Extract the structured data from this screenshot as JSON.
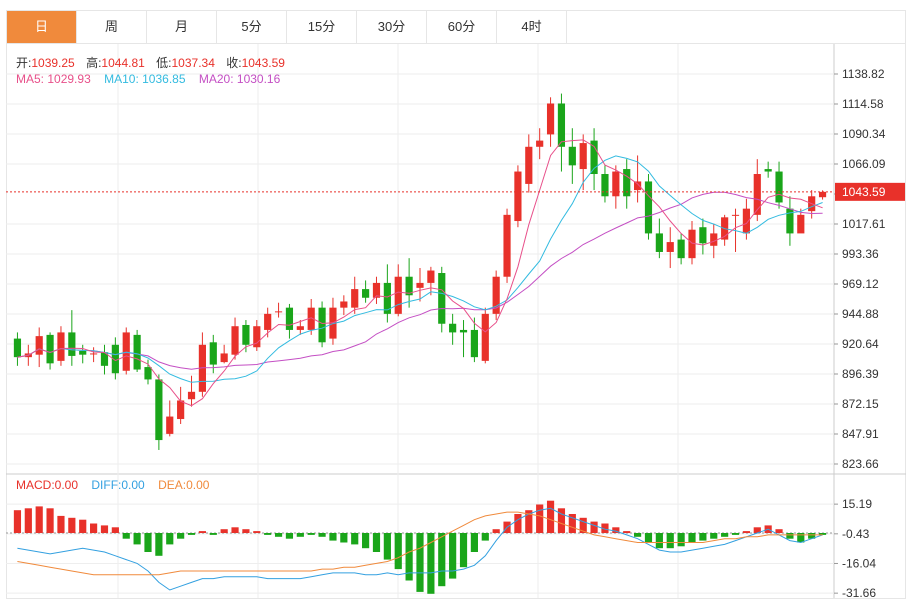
{
  "tabs": [
    "日",
    "周",
    "月",
    "5分",
    "15分",
    "30分",
    "60分",
    "4时"
  ],
  "active_tab": 0,
  "ohlc": {
    "open_label": "开:",
    "open": "1039.25",
    "high_label": "高:",
    "high": "1044.81",
    "low_label": "低:",
    "low": "1037.34",
    "close_label": "收:",
    "close": "1043.59"
  },
  "ma": {
    "ma5_label": "MA5:",
    "ma5": "1029.93",
    "ma10_label": "MA10:",
    "ma10": "1036.85",
    "ma20_label": "MA20:",
    "ma20": "1030.16"
  },
  "macd_info": {
    "macd_label": "MACD:",
    "macd": "0.00",
    "diff_label": "DIFF:",
    "diff": "0.00",
    "dea_label": "DEA:",
    "dea": "0.00"
  },
  "colors": {
    "up": "#e8312a",
    "down": "#1aa51a",
    "ma5": "#e8508a",
    "ma10": "#33bbe0",
    "ma20": "#c44fc4",
    "diff": "#33a0e0",
    "dea": "#f08a3c",
    "grid": "#eeeeee",
    "axis_text": "#333333",
    "current_label_bg": "#e8312a"
  },
  "chart_data": {
    "type": "candlestick",
    "price_axis": {
      "min": 823.66,
      "max": 1138.82,
      "ticks": [
        "1138.82",
        "1114.58",
        "1090.34",
        "1066.09",
        "1041.85",
        "1017.61",
        "993.36",
        "969.12",
        "944.88",
        "920.64",
        "896.39",
        "872.15",
        "847.91",
        "823.66"
      ]
    },
    "current_price": "1043.59",
    "candles": [
      [
        925,
        910,
        930,
        903
      ],
      [
        910,
        913,
        920,
        903
      ],
      [
        912,
        927,
        934,
        902
      ],
      [
        928,
        905,
        930,
        900
      ],
      [
        907,
        930,
        935,
        903
      ],
      [
        930,
        911,
        948,
        903
      ],
      [
        915,
        912,
        920,
        905
      ],
      [
        913,
        913,
        918,
        906
      ],
      [
        914,
        903,
        920,
        896
      ],
      [
        920,
        897,
        926,
        892
      ],
      [
        899,
        930,
        934,
        896
      ],
      [
        928,
        900,
        932,
        898
      ],
      [
        902,
        892,
        908,
        888
      ],
      [
        892,
        843,
        896,
        835
      ],
      [
        848,
        862,
        875,
        846
      ],
      [
        860,
        875,
        886,
        856
      ],
      [
        876,
        882,
        895,
        870
      ],
      [
        882,
        920,
        930,
        878
      ],
      [
        922,
        904,
        928,
        897
      ],
      [
        906,
        913,
        920,
        905
      ],
      [
        912,
        935,
        942,
        908
      ],
      [
        936,
        920,
        940,
        914
      ],
      [
        918,
        935,
        940,
        915
      ],
      [
        932,
        945,
        950,
        926
      ],
      [
        947,
        947,
        954,
        942
      ],
      [
        950,
        932,
        953,
        925
      ],
      [
        932,
        935,
        940,
        928
      ],
      [
        932,
        950,
        957,
        928
      ],
      [
        950,
        922,
        955,
        918
      ],
      [
        925,
        950,
        958,
        920
      ],
      [
        950,
        955,
        960,
        944
      ],
      [
        950,
        965,
        975,
        945
      ],
      [
        965,
        958,
        972,
        954
      ],
      [
        958,
        970,
        975,
        953
      ],
      [
        970,
        945,
        985,
        938
      ],
      [
        945,
        975,
        985,
        943
      ],
      [
        975,
        960,
        990,
        950
      ],
      [
        966,
        970,
        982,
        955
      ],
      [
        970,
        980,
        983,
        960
      ],
      [
        978,
        937,
        983,
        930
      ],
      [
        937,
        930,
        945,
        920
      ],
      [
        932,
        930,
        940,
        910
      ],
      [
        932,
        910,
        942,
        906
      ],
      [
        907,
        945,
        950,
        905
      ],
      [
        945,
        975,
        980,
        940
      ],
      [
        975,
        1025,
        1030,
        970
      ],
      [
        1020,
        1060,
        1065,
        1015
      ],
      [
        1050,
        1080,
        1090,
        1043
      ],
      [
        1080,
        1085,
        1095,
        1070
      ],
      [
        1090,
        1115,
        1120,
        1080
      ],
      [
        1115,
        1080,
        1123,
        1060
      ],
      [
        1080,
        1065,
        1095,
        1050
      ],
      [
        1062,
        1083,
        1090,
        1045
      ],
      [
        1085,
        1058,
        1095,
        1045
      ],
      [
        1058,
        1040,
        1065,
        1035
      ],
      [
        1040,
        1060,
        1065,
        1030
      ],
      [
        1062,
        1040,
        1070,
        1030
      ],
      [
        1045,
        1052,
        1073,
        1035
      ],
      [
        1052,
        1010,
        1058,
        1005
      ],
      [
        1010,
        995,
        1022,
        990
      ],
      [
        995,
        1003,
        1015,
        982
      ],
      [
        1005,
        990,
        1010,
        985
      ],
      [
        990,
        1013,
        1020,
        985
      ],
      [
        1015,
        1002,
        1022,
        993
      ],
      [
        1000,
        1010,
        1018,
        990
      ],
      [
        1005,
        1023,
        1025,
        1000
      ],
      [
        1025,
        1025,
        1030,
        995
      ],
      [
        1010,
        1030,
        1038,
        1005
      ],
      [
        1025,
        1058,
        1070,
        1020
      ],
      [
        1062,
        1060,
        1068,
        1055
      ],
      [
        1060,
        1035,
        1068,
        1030
      ],
      [
        1030,
        1010,
        1040,
        1000
      ],
      [
        1010,
        1025,
        1030,
        1012
      ],
      [
        1028,
        1040,
        1045,
        1022
      ],
      [
        1039.25,
        1043.59,
        1044.81,
        1037.34
      ]
    ],
    "macd_axis": {
      "ticks": [
        "15.19",
        "-0.43",
        "-16.04",
        "-31.66"
      ]
    },
    "macd_bars": [
      12,
      13,
      14,
      13,
      9,
      8,
      7,
      5,
      4,
      3,
      -3,
      -6,
      -10,
      -12,
      -6,
      -3,
      -1,
      1,
      -1,
      2,
      3,
      2,
      1,
      -1,
      -2,
      -3,
      -2,
      -1,
      -2,
      -4,
      -5,
      -6,
      -8,
      -10,
      -14,
      -19,
      -25,
      -31,
      -32,
      -28,
      -24,
      -18,
      -10,
      -4,
      2,
      6,
      10,
      12,
      15,
      17,
      13,
      10,
      8,
      6,
      5,
      3,
      1,
      -2,
      -5,
      -8,
      -8,
      -7,
      -5,
      -4,
      -3,
      -2,
      -1,
      1,
      3,
      4,
      2,
      -3,
      -5,
      -3,
      -1
    ],
    "diff": [
      -8,
      -9,
      -10,
      -11,
      -10,
      -9,
      -8,
      -9,
      -10,
      -12,
      -14,
      -16,
      -20,
      -26,
      -30,
      -28,
      -26,
      -24,
      -24,
      -23,
      -23,
      -23,
      -23,
      -24,
      -24,
      -24,
      -24,
      -23,
      -22,
      -21,
      -21,
      -21,
      -22,
      -22,
      -21,
      -22,
      -21,
      -21,
      -21,
      -20,
      -20,
      -19,
      -17,
      -12,
      -4,
      3,
      7,
      10,
      12,
      13,
      10,
      8,
      6,
      4,
      2,
      1,
      -1,
      -3,
      -6,
      -9,
      -10,
      -10,
      -9,
      -8,
      -7,
      -6,
      -4,
      -2,
      0,
      2,
      -1,
      -4,
      -5,
      -3,
      -1
    ],
    "dea": [
      -15,
      -16,
      -17,
      -18,
      -19,
      -20,
      -21,
      -22,
      -22,
      -22,
      -22,
      -22,
      -22,
      -22,
      -21,
      -20,
      -20,
      -20,
      -20,
      -20,
      -20,
      -20,
      -20,
      -20,
      -20,
      -20,
      -20,
      -20,
      -19,
      -19,
      -18,
      -18,
      -17,
      -16,
      -15,
      -13,
      -10,
      -8,
      -5,
      -2,
      1,
      4,
      7,
      9,
      10,
      11,
      11,
      10,
      9,
      7,
      5,
      3,
      1,
      -1,
      -2,
      -3,
      -4,
      -5,
      -5,
      -5,
      -5,
      -5,
      -5,
      -5,
      -4,
      -3,
      -3,
      -2,
      -2,
      -1,
      -1,
      -1,
      -1,
      -1,
      -1
    ]
  }
}
